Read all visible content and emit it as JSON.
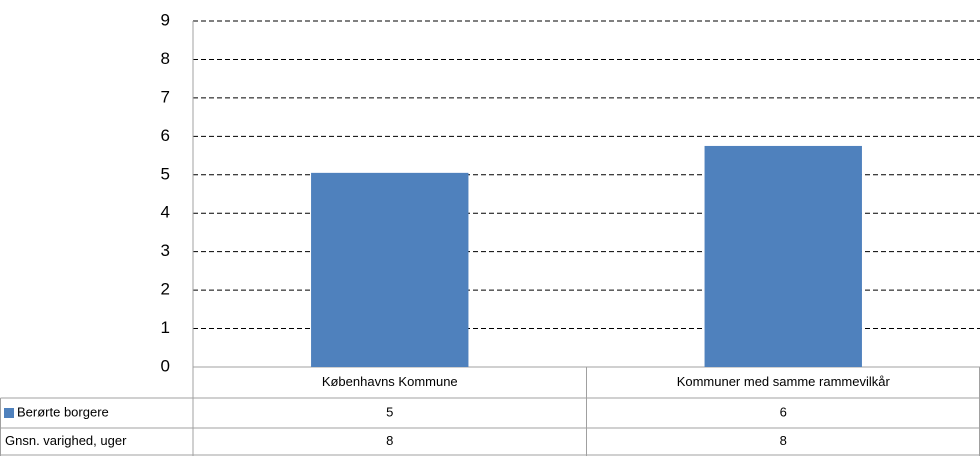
{
  "chart_data": {
    "type": "bar",
    "categories": [
      "Københavns Kommune",
      "Kommuner med samme rammevilkår"
    ],
    "series": [
      {
        "name": "Berørte borgere",
        "color": "#4f81bd",
        "values": [
          5.05,
          5.75
        ],
        "value_labels": [
          "5",
          "6"
        ]
      }
    ],
    "ylim": [
      0,
      9
    ],
    "yticks": [
      0,
      1,
      2,
      3,
      4,
      5,
      6,
      7,
      8,
      9
    ],
    "grid": true,
    "data_table": {
      "rows": [
        {
          "name": "Gnsn. varighed, uger",
          "values": [
            8,
            8
          ]
        }
      ]
    }
  }
}
